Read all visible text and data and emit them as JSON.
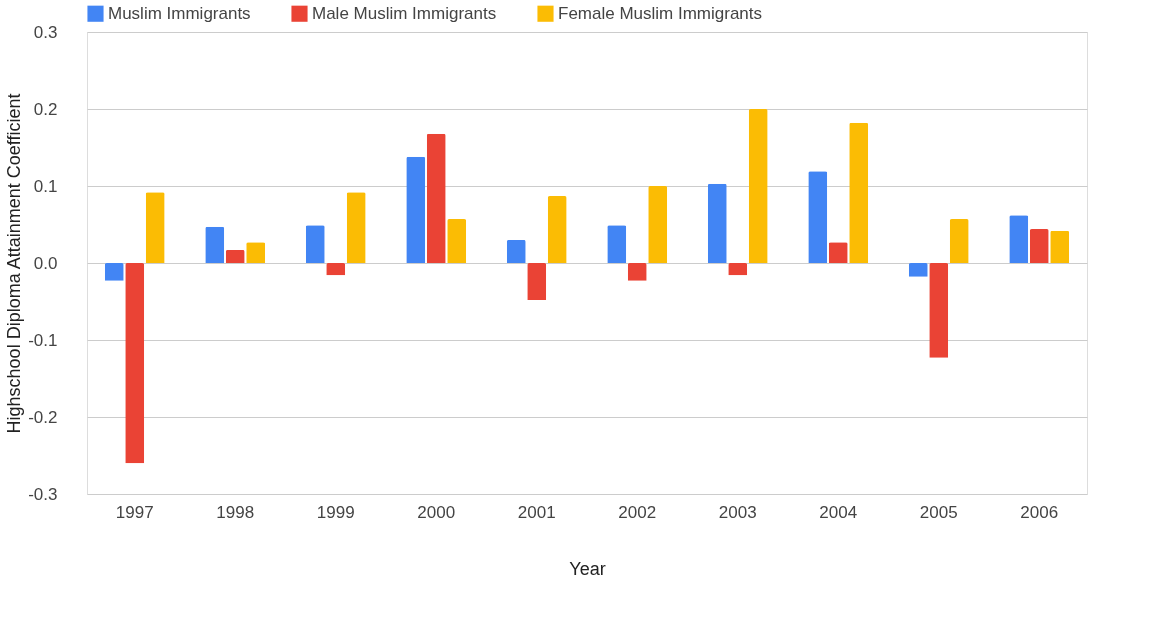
{
  "chart_data": {
    "type": "bar",
    "xlabel": "Year",
    "ylabel": "Highschool Diploma Attainment Coefficient",
    "categories": [
      "1997",
      "1998",
      "1999",
      "2000",
      "2001",
      "2002",
      "2003",
      "2004",
      "2005",
      "2006"
    ],
    "series": [
      {
        "name": "Muslim Immigrants",
        "color": "#4285f4",
        "values": [
          -0.023,
          0.047,
          0.049,
          0.138,
          0.03,
          0.049,
          0.103,
          0.119,
          -0.018,
          0.062
        ]
      },
      {
        "name": "Male Muslim Immigrants",
        "color": "#ea4335",
        "values": [
          -0.26,
          0.017,
          -0.016,
          0.168,
          -0.048,
          -0.023,
          -0.016,
          0.027,
          -0.123,
          0.044
        ]
      },
      {
        "name": "Female Muslim Immigrants",
        "color": "#fbbc04",
        "values": [
          0.092,
          0.027,
          0.092,
          0.057,
          0.087,
          0.1,
          0.2,
          0.182,
          0.057,
          0.042
        ]
      }
    ],
    "ylim": [
      -0.3,
      0.3
    ],
    "yticks": [
      {
        "value": -0.3,
        "label": "-0.3"
      },
      {
        "value": -0.2,
        "label": "-0.2"
      },
      {
        "value": -0.1,
        "label": "-0.1"
      },
      {
        "value": 0,
        "label": "0.0"
      },
      {
        "value": 0.1,
        "label": "0.1"
      },
      {
        "value": 0.2,
        "label": "0.2"
      },
      {
        "value": 0.3,
        "label": "0.3"
      }
    ],
    "grid": "y",
    "legend": "top left"
  }
}
